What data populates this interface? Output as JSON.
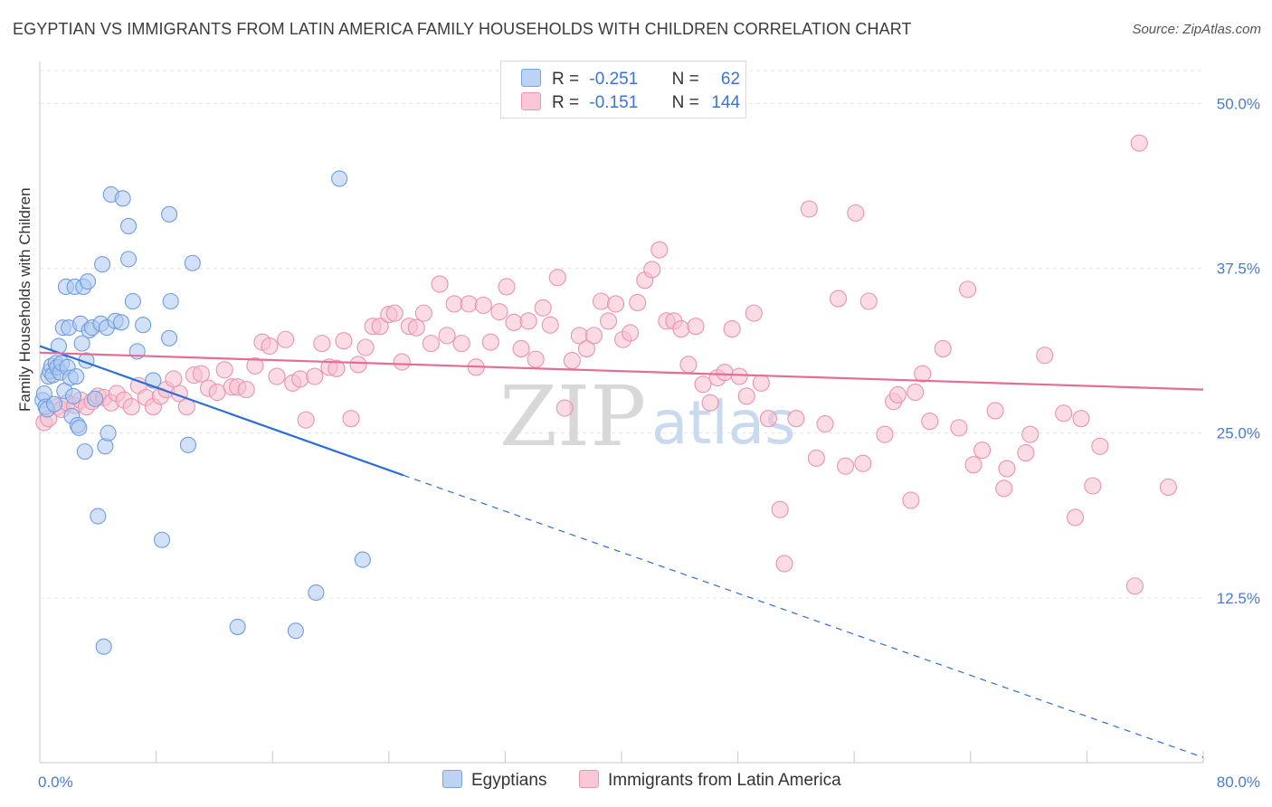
{
  "title": "EGYPTIAN VS IMMIGRANTS FROM LATIN AMERICA FAMILY HOUSEHOLDS WITH CHILDREN CORRELATION CHART",
  "source": "Source: ZipAtlas.com",
  "watermark": {
    "zip": "ZIP",
    "atlas": "atlas"
  },
  "legend": {
    "rows": [
      {
        "r_label": "R =",
        "r_value": "-0.251",
        "n_label": "N =",
        "n_value": "62",
        "color": "#aec8f0",
        "stroke": "#6d9be0"
      },
      {
        "r_label": "R =",
        "r_value": "-0.151",
        "n_label": "N =",
        "n_value": "144",
        "color": "#f7bfd0",
        "stroke": "#e88aa8"
      }
    ]
  },
  "bottom_legend": [
    {
      "label": "Egyptians",
      "color": "#aec8f0",
      "stroke": "#6d9be0"
    },
    {
      "label": "Immigrants from Latin America",
      "color": "#f7bfd0",
      "stroke": "#e88aa8"
    }
  ],
  "chart_data": {
    "type": "scatter",
    "title": "EGYPTIAN VS IMMIGRANTS FROM LATIN AMERICA FAMILY HOUSEHOLDS WITH CHILDREN CORRELATION CHART",
    "xlabel": "",
    "ylabel": "Family Households with Children",
    "xlim": [
      0,
      80
    ],
    "ylim": [
      0,
      52.5
    ],
    "x_tick_labels": [
      "0.0%",
      "80.0%"
    ],
    "y_ticks": [
      12.5,
      25.0,
      37.5,
      50.0
    ],
    "y_tick_labels": [
      "12.5%",
      "25.0%",
      "37.5%",
      "50.0%"
    ],
    "grid": true,
    "legend_position": "top-center",
    "colors": {
      "egyptians": "#5b8fe0",
      "latin": "#e77fa3",
      "egyptians_line": "#2b6fd6",
      "latin_line": "#e56c97"
    },
    "series": [
      {
        "name": "Egyptians",
        "trend": {
          "x": [
            0,
            25
          ],
          "y": [
            31.6,
            21.8
          ],
          "dashed_to_x": 80,
          "dashed_to_y": 0.4
        },
        "points": [
          [
            0.2,
            27.5
          ],
          [
            0.3,
            28.0
          ],
          [
            0.4,
            27.0
          ],
          [
            0.5,
            26.8
          ],
          [
            0.6,
            29.3
          ],
          [
            0.7,
            29.7
          ],
          [
            0.8,
            30.1
          ],
          [
            0.9,
            29.4
          ],
          [
            1.0,
            27.2
          ],
          [
            1.1,
            30.3
          ],
          [
            1.2,
            30.0
          ],
          [
            1.3,
            31.6
          ],
          [
            1.4,
            29.6
          ],
          [
            1.5,
            30.3
          ],
          [
            1.6,
            33.0
          ],
          [
            1.7,
            28.2
          ],
          [
            1.8,
            36.1
          ],
          [
            1.9,
            30.0
          ],
          [
            2.0,
            33.0
          ],
          [
            2.1,
            29.2
          ],
          [
            2.2,
            26.3
          ],
          [
            2.3,
            27.8
          ],
          [
            2.4,
            36.1
          ],
          [
            2.5,
            29.3
          ],
          [
            2.6,
            25.6
          ],
          [
            2.7,
            25.4
          ],
          [
            2.8,
            33.3
          ],
          [
            2.9,
            31.8
          ],
          [
            3.0,
            36.1
          ],
          [
            3.1,
            23.6
          ],
          [
            3.2,
            30.5
          ],
          [
            3.3,
            36.5
          ],
          [
            3.4,
            32.8
          ],
          [
            3.6,
            33.0
          ],
          [
            3.8,
            27.6
          ],
          [
            4.0,
            18.7
          ],
          [
            4.2,
            33.3
          ],
          [
            4.3,
            37.8
          ],
          [
            4.4,
            8.8
          ],
          [
            4.5,
            24.0
          ],
          [
            4.6,
            33.0
          ],
          [
            4.7,
            25.0
          ],
          [
            4.9,
            43.1
          ],
          [
            5.2,
            33.5
          ],
          [
            5.6,
            33.4
          ],
          [
            5.7,
            42.8
          ],
          [
            6.1,
            40.7
          ],
          [
            6.1,
            38.2
          ],
          [
            6.4,
            35.0
          ],
          [
            6.7,
            31.2
          ],
          [
            7.1,
            33.2
          ],
          [
            7.8,
            29.0
          ],
          [
            8.4,
            16.9
          ],
          [
            8.9,
            32.2
          ],
          [
            8.9,
            41.6
          ],
          [
            9.0,
            35.0
          ],
          [
            10.2,
            24.1
          ],
          [
            10.5,
            37.9
          ],
          [
            13.6,
            10.3
          ],
          [
            17.6,
            10.0
          ],
          [
            19.0,
            12.9
          ],
          [
            20.6,
            44.3
          ],
          [
            22.2,
            15.4
          ]
        ]
      },
      {
        "name": "Immigrants from Latin America",
        "trend": {
          "x": [
            0,
            80
          ],
          "y": [
            31.1,
            28.3
          ]
        },
        "points": [
          [
            0.3,
            25.8
          ],
          [
            0.6,
            26.1
          ],
          [
            1.2,
            27.0
          ],
          [
            1.5,
            26.8
          ],
          [
            1.9,
            27.3
          ],
          [
            2.4,
            27.1
          ],
          [
            2.8,
            27.5
          ],
          [
            3.2,
            27.0
          ],
          [
            3.6,
            27.4
          ],
          [
            4.0,
            27.8
          ],
          [
            4.4,
            27.7
          ],
          [
            4.9,
            27.3
          ],
          [
            5.3,
            28.0
          ],
          [
            5.8,
            27.5
          ],
          [
            6.3,
            27.0
          ],
          [
            6.8,
            28.6
          ],
          [
            7.3,
            27.7
          ],
          [
            7.8,
            27.0
          ],
          [
            8.3,
            27.8
          ],
          [
            8.7,
            28.3
          ],
          [
            9.2,
            29.1
          ],
          [
            9.6,
            28.0
          ],
          [
            10.1,
            27.0
          ],
          [
            10.6,
            29.4
          ],
          [
            11.1,
            29.5
          ],
          [
            11.6,
            28.4
          ],
          [
            12.2,
            28.1
          ],
          [
            12.7,
            29.8
          ],
          [
            13.2,
            28.5
          ],
          [
            13.6,
            28.5
          ],
          [
            14.2,
            28.3
          ],
          [
            14.8,
            30.1
          ],
          [
            15.3,
            31.9
          ],
          [
            15.8,
            31.6
          ],
          [
            16.3,
            29.3
          ],
          [
            16.9,
            32.1
          ],
          [
            17.4,
            28.8
          ],
          [
            17.9,
            29.1
          ],
          [
            18.3,
            26.0
          ],
          [
            18.9,
            29.3
          ],
          [
            19.4,
            31.8
          ],
          [
            19.9,
            30.0
          ],
          [
            20.4,
            29.9
          ],
          [
            20.9,
            32.0
          ],
          [
            21.4,
            26.1
          ],
          [
            21.9,
            30.2
          ],
          [
            22.4,
            31.5
          ],
          [
            22.9,
            33.1
          ],
          [
            23.4,
            33.1
          ],
          [
            24.0,
            34.0
          ],
          [
            24.4,
            34.1
          ],
          [
            24.9,
            30.4
          ],
          [
            25.4,
            33.1
          ],
          [
            25.9,
            33.0
          ],
          [
            26.4,
            34.1
          ],
          [
            26.9,
            31.8
          ],
          [
            27.5,
            36.3
          ],
          [
            28.0,
            32.4
          ],
          [
            28.5,
            34.8
          ],
          [
            29.0,
            31.8
          ],
          [
            29.5,
            34.8
          ],
          [
            30.0,
            30.0
          ],
          [
            30.5,
            34.7
          ],
          [
            31.0,
            31.9
          ],
          [
            31.6,
            34.2
          ],
          [
            32.1,
            36.1
          ],
          [
            32.6,
            33.4
          ],
          [
            33.1,
            31.4
          ],
          [
            33.6,
            33.5
          ],
          [
            34.1,
            30.6
          ],
          [
            34.6,
            34.5
          ],
          [
            35.1,
            33.2
          ],
          [
            35.6,
            36.8
          ],
          [
            36.1,
            26.9
          ],
          [
            36.6,
            30.5
          ],
          [
            37.1,
            32.4
          ],
          [
            37.6,
            31.4
          ],
          [
            38.1,
            32.4
          ],
          [
            38.6,
            35.0
          ],
          [
            39.1,
            33.5
          ],
          [
            39.6,
            34.8
          ],
          [
            40.1,
            32.1
          ],
          [
            40.6,
            32.6
          ],
          [
            41.1,
            34.9
          ],
          [
            41.6,
            36.6
          ],
          [
            42.1,
            37.4
          ],
          [
            42.6,
            38.9
          ],
          [
            43.1,
            33.5
          ],
          [
            43.6,
            33.5
          ],
          [
            44.1,
            32.9
          ],
          [
            44.6,
            30.2
          ],
          [
            45.1,
            33.1
          ],
          [
            45.6,
            28.7
          ],
          [
            46.1,
            27.3
          ],
          [
            46.6,
            29.2
          ],
          [
            47.1,
            29.6
          ],
          [
            47.6,
            32.9
          ],
          [
            48.1,
            29.3
          ],
          [
            48.6,
            27.8
          ],
          [
            49.1,
            34.1
          ],
          [
            49.6,
            28.8
          ],
          [
            50.1,
            26.1
          ],
          [
            50.9,
            19.2
          ],
          [
            51.2,
            15.1
          ],
          [
            52.0,
            26.1
          ],
          [
            52.9,
            42.0
          ],
          [
            53.4,
            23.1
          ],
          [
            54.0,
            25.7
          ],
          [
            54.9,
            35.2
          ],
          [
            55.4,
            22.5
          ],
          [
            56.1,
            41.7
          ],
          [
            56.6,
            22.7
          ],
          [
            57.0,
            35.0
          ],
          [
            58.1,
            24.9
          ],
          [
            58.7,
            27.4
          ],
          [
            59.0,
            27.9
          ],
          [
            59.9,
            19.9
          ],
          [
            60.2,
            28.1
          ],
          [
            60.7,
            29.5
          ],
          [
            61.2,
            25.9
          ],
          [
            62.1,
            31.4
          ],
          [
            63.2,
            25.4
          ],
          [
            63.8,
            35.9
          ],
          [
            64.2,
            22.6
          ],
          [
            64.8,
            23.7
          ],
          [
            65.7,
            26.7
          ],
          [
            66.3,
            20.8
          ],
          [
            66.5,
            22.3
          ],
          [
            67.8,
            23.5
          ],
          [
            68.1,
            24.9
          ],
          [
            69.1,
            30.9
          ],
          [
            70.4,
            26.5
          ],
          [
            71.2,
            18.6
          ],
          [
            71.6,
            26.1
          ],
          [
            72.4,
            21.0
          ],
          [
            72.9,
            24.0
          ],
          [
            75.3,
            13.4
          ],
          [
            75.6,
            47.0
          ],
          [
            77.6,
            20.9
          ]
        ]
      }
    ]
  }
}
